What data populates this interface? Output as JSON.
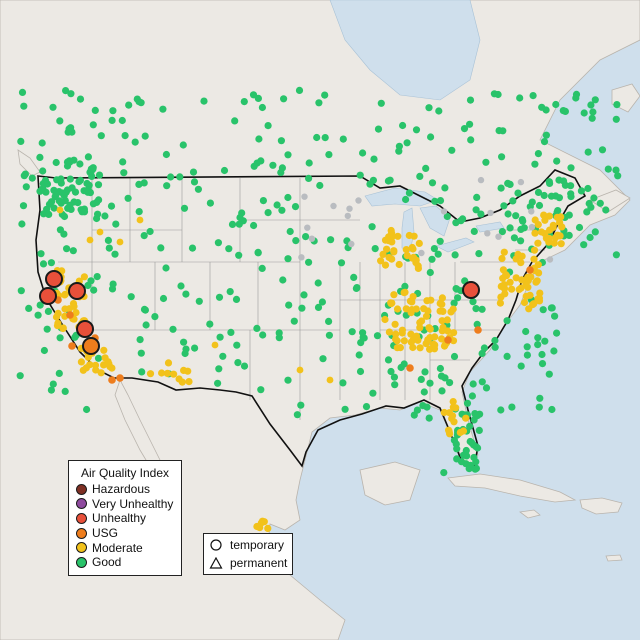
{
  "colors": {
    "ocean": "#cfdfec",
    "land": "#ece9e4",
    "land_edge": "#b9b4ad",
    "border": "#111111",
    "state_line": "#9a9a9a",
    "hazardous": "#7e2f23",
    "very_unhealthy": "#8e4a9e",
    "unhealthy": "#e8503a",
    "usg": "#ee7d1d",
    "moderate": "#f2c21b",
    "good": "#29c36a",
    "no_data": "#b9bcc0"
  },
  "aqi_legend": {
    "title": "Air Quality Index",
    "items": [
      {
        "label": "Hazardous",
        "color": "#7e2f23"
      },
      {
        "label": "Very Unhealthy",
        "color": "#8e4a9e"
      },
      {
        "label": "Unhealthy",
        "color": "#e8503a"
      },
      {
        "label": "USG",
        "color": "#ee7d1d"
      },
      {
        "label": "Moderate",
        "color": "#f2c21b"
      },
      {
        "label": "Good",
        "color": "#29c36a"
      }
    ]
  },
  "type_legend": {
    "items": [
      {
        "label": "temporary",
        "shape": "circle"
      },
      {
        "label": "permanent",
        "shape": "triangle"
      }
    ]
  }
}
